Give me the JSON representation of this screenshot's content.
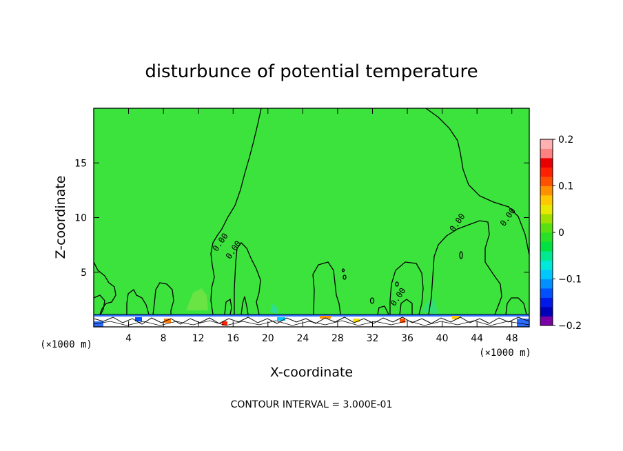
{
  "chart_data": {
    "type": "heatmap",
    "title": "disturbunce of potential temperature",
    "xlabel": "X-coordinate",
    "ylabel": "Z-coordinate",
    "x_unit_left": "(×1000 m)",
    "x_unit_right": "(×1000 m)",
    "xlim": [
      0,
      50
    ],
    "ylim": [
      0,
      20
    ],
    "x_ticks": [
      4,
      8,
      12,
      16,
      20,
      24,
      28,
      32,
      36,
      40,
      44,
      48
    ],
    "y_ticks": [
      5,
      10,
      15
    ],
    "colorbar": {
      "range": [
        -0.2,
        0.2
      ],
      "tick_values": [
        0.2,
        0.1,
        0,
        -0.1,
        -0.2
      ],
      "tick_labels": [
        "0.2",
        "0.1",
        "0",
        "−0.1",
        "−0.2"
      ],
      "colors": [
        "#7a00a8",
        "#0000b8",
        "#0018e8",
        "#0050ff",
        "#0090ff",
        "#00c8ff",
        "#00e8d8",
        "#00e890",
        "#00e040",
        "#28e028",
        "#58e010",
        "#a0e000",
        "#e8e800",
        "#ffc800",
        "#ff9000",
        "#ff5000",
        "#ff2000",
        "#e80000",
        "#ff8080",
        "#ffb0b0"
      ]
    },
    "background_value": 0,
    "contour_labels": [
      {
        "x": 14.8,
        "z": 7.6,
        "text": "0.00"
      },
      {
        "x": 16.3,
        "z": 6.9,
        "text": "0.00"
      },
      {
        "x": 35.2,
        "z": 2.6,
        "text": "0.00"
      },
      {
        "x": 42.0,
        "z": 9.4,
        "text": "0.00"
      },
      {
        "x": 47.8,
        "z": 9.9,
        "text": "0.00"
      }
    ],
    "footer": "CONTOUR INTERVAL = 3.000E-01"
  }
}
